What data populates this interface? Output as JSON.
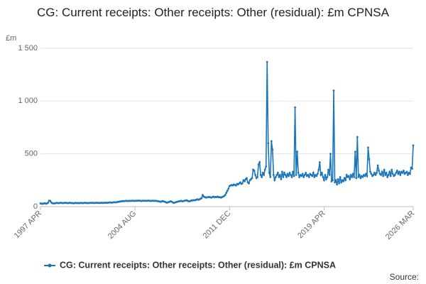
{
  "chart_data": {
    "type": "line",
    "title": "CG: Current receipts: Other receipts: Other (residual): £m CPNSA",
    "y_unit": "£m",
    "source": "Source:",
    "categories": [
      "1997 APR",
      null,
      null,
      null,
      null,
      null,
      null,
      null,
      null,
      null,
      null,
      null,
      null,
      null,
      null,
      null,
      null,
      null,
      null,
      null,
      null,
      null,
      null,
      null,
      null,
      null,
      null,
      null,
      null,
      null,
      null,
      null,
      null,
      null,
      null,
      null,
      null,
      null,
      null,
      null,
      null,
      null,
      null,
      null,
      null,
      null,
      null,
      null,
      null,
      null,
      null,
      null,
      null,
      null,
      null,
      null,
      null,
      null,
      null,
      null,
      null,
      null,
      null,
      null,
      null,
      null,
      null,
      null,
      null,
      null,
      null,
      null,
      null,
      null,
      null,
      null,
      null,
      null,
      null,
      null,
      null,
      null,
      null,
      null,
      null,
      null,
      null,
      null,
      "2004 AUG",
      null,
      null,
      null,
      null,
      null,
      null,
      null,
      null,
      null,
      null,
      null,
      null,
      null,
      null,
      null,
      null,
      null,
      null,
      null,
      null,
      null,
      null,
      null,
      null,
      null,
      null,
      null,
      null,
      null,
      null,
      null,
      null,
      null,
      null,
      null,
      null,
      null,
      null,
      null,
      null,
      null,
      null,
      null,
      null,
      null,
      null,
      null,
      null,
      null,
      null,
      null,
      null,
      null,
      null,
      null,
      null,
      null,
      null,
      null,
      null,
      null,
      null,
      null,
      null,
      null,
      null,
      null,
      null,
      null,
      null,
      null,
      null,
      null,
      null,
      null,
      null,
      null,
      null,
      null,
      null,
      null,
      null,
      null,
      null,
      null,
      null,
      null,
      "2011 DEC",
      null,
      null,
      null,
      null,
      null,
      null,
      null,
      null,
      null,
      null,
      null,
      null,
      null,
      null,
      null,
      null,
      null,
      null,
      null,
      null,
      null,
      null,
      null,
      null,
      null,
      null,
      null,
      null,
      null,
      null,
      null,
      null,
      null,
      null,
      null,
      null,
      null,
      null,
      null,
      null,
      null,
      null,
      null,
      null,
      null,
      null,
      null,
      null,
      null,
      null,
      null,
      null,
      null,
      null,
      null,
      null,
      null,
      null,
      null,
      null,
      null,
      null,
      null,
      null,
      null,
      null,
      null,
      null,
      null,
      null,
      null,
      null,
      null,
      null,
      null,
      null,
      null,
      null,
      null,
      null,
      null,
      null,
      null,
      null,
      null,
      null,
      null,
      "2019 APR",
      null,
      null,
      null,
      null,
      null,
      null,
      null,
      null,
      null,
      null,
      null,
      null,
      null,
      null,
      null,
      null,
      null,
      null,
      null,
      null,
      null,
      null,
      null,
      null,
      null,
      null,
      null,
      null,
      null,
      null,
      null,
      null,
      null,
      null,
      null,
      null,
      null,
      null,
      null,
      null,
      null,
      null,
      null,
      null,
      null,
      null,
      null,
      null,
      null,
      null,
      null,
      null,
      null,
      null,
      null,
      null,
      null,
      null,
      null,
      null,
      null,
      null,
      null,
      null,
      null,
      null,
      null,
      null,
      null,
      null,
      null,
      null,
      null,
      null,
      null,
      null,
      null,
      null,
      null,
      null,
      null,
      null,
      "2026 MAR"
    ],
    "series": [
      {
        "name": "CG: Current receipts: Other receipts: Other (residual): £m CPNSA",
        "color": "#1b75bb",
        "values": [
          30,
          28,
          27,
          30,
          32,
          28,
          30,
          35,
          55,
          55,
          40,
          32,
          32,
          30,
          33,
          35,
          34,
          33,
          35,
          36,
          34,
          33,
          35,
          36,
          35,
          34,
          33,
          36,
          35,
          34,
          33,
          32,
          34,
          35,
          33,
          34,
          33,
          34,
          35,
          33,
          34,
          36,
          35,
          34,
          33,
          35,
          34,
          36,
          35,
          36,
          34,
          35,
          37,
          36,
          35,
          34,
          36,
          37,
          35,
          36,
          37,
          38,
          36,
          37,
          39,
          40,
          38,
          39,
          40,
          41,
          40,
          42,
          45,
          46,
          48,
          50,
          52,
          53,
          52,
          54,
          55,
          53,
          54,
          55,
          54,
          55,
          56,
          55,
          54,
          56,
          55,
          57,
          56,
          55,
          54,
          56,
          55,
          56,
          54,
          55,
          57,
          56,
          55,
          54,
          55,
          56,
          54,
          55,
          54,
          52,
          50,
          48,
          45,
          50,
          52,
          48,
          45,
          40,
          38,
          42,
          45,
          50,
          48,
          40,
          35,
          38,
          42,
          45,
          48,
          50,
          52,
          55,
          50,
          52,
          55,
          58,
          60,
          55,
          50,
          52,
          55,
          60,
          58,
          62,
          60,
          65,
          70,
          65,
          68,
          75,
          80,
          110,
          95,
          90,
          85,
          88,
          90,
          92,
          88,
          85,
          90,
          95,
          88,
          92,
          90,
          95,
          88,
          90,
          85,
          90,
          95,
          100,
          110,
          130,
          150,
          170,
          195,
          200,
          205,
          200,
          210,
          205,
          200,
          215,
          210,
          220,
          230,
          215,
          220,
          250,
          240,
          260,
          270,
          230,
          220,
          250,
          260,
          270,
          350,
          340,
          300,
          270,
          280,
          400,
          420,
          300,
          280,
          320,
          300,
          350,
          380,
          1370,
          600,
          320,
          280,
          620,
          540,
          300,
          250,
          280,
          300,
          320,
          280,
          300,
          260,
          330,
          280,
          320,
          300,
          280,
          310,
          290,
          320,
          300,
          280,
          330,
          290,
          940,
          300,
          520,
          320,
          280,
          300,
          290,
          310,
          280,
          300,
          320,
          290,
          300,
          280,
          310,
          300,
          290,
          320,
          280,
          300,
          290,
          310,
          350,
          420,
          300,
          320,
          280,
          250,
          300,
          260,
          280,
          350,
          300,
          500,
          240,
          250,
          1100,
          230,
          250,
          210,
          260,
          220,
          280,
          230,
          250,
          240,
          270,
          250,
          300,
          280,
          290,
          260,
          300,
          280,
          310,
          280,
          520,
          270,
          660,
          280,
          300,
          270,
          290,
          280,
          300,
          290,
          310,
          290,
          560,
          450,
          330,
          310,
          290,
          300,
          320,
          300,
          320,
          390,
          340,
          310,
          300,
          330,
          290,
          350,
          300,
          320,
          280,
          300,
          330,
          290,
          350,
          310,
          290,
          300,
          320,
          340,
          310,
          330,
          300,
          330,
          320,
          340,
          310,
          320,
          330,
          300,
          320,
          310,
          370,
          360,
          580
        ]
      }
    ],
    "ylim": [
      0,
      1500
    ],
    "yticks": [
      0,
      500,
      {
        "value": 1000,
        "label": "1 000"
      },
      {
        "value": 1500,
        "label": "1 500"
      }
    ],
    "grid": true
  }
}
